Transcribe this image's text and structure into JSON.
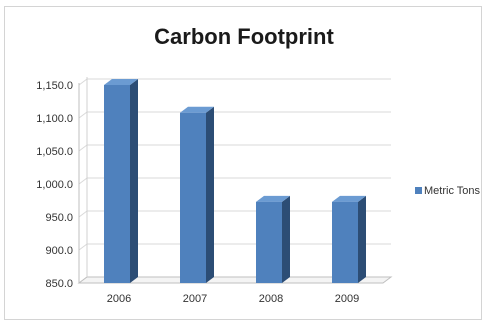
{
  "chart_data": {
    "type": "bar",
    "title": "Carbon Footprint",
    "categories": [
      "2006",
      "2007",
      "2008",
      "2009"
    ],
    "series": [
      {
        "name": "Metric Tons",
        "values": [
          1150,
          1108,
          973,
          973
        ]
      }
    ],
    "y_ticks": [
      "850.0",
      "900.0",
      "950.0",
      "1,000.0",
      "1,050.0",
      "1,100.0",
      "1,150.0"
    ],
    "ylim": [
      850,
      1150
    ],
    "grid": true,
    "legend_position": "right",
    "style_3d": true,
    "colors": {
      "bar_front": "#4f81bd",
      "bar_side": "#2c4d75",
      "bar_top": "#6b9bd2",
      "grid": "#d9d9d9",
      "legend_swatch": "#4f81bd"
    }
  }
}
